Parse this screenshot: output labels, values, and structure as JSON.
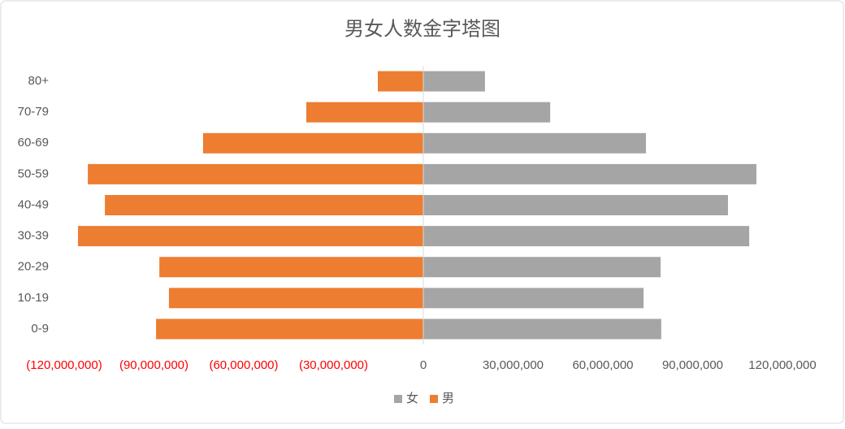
{
  "chart_data": {
    "type": "pyramid",
    "title": "男女人数金字塔图",
    "categories": [
      "0-9",
      "10-19",
      "20-29",
      "30-39",
      "40-49",
      "50-59",
      "60-69",
      "70-79",
      "80+"
    ],
    "series": [
      {
        "name": "女",
        "color": "#a5a5a5",
        "values": [
          79500000,
          73600000,
          79300000,
          108900000,
          101800000,
          111300000,
          74400000,
          42400000,
          20600000
        ]
      },
      {
        "name": "男",
        "color": "#ed7d31",
        "values": [
          -89300000,
          -85000000,
          -88200000,
          -115400000,
          -106400000,
          -112100000,
          -73600000,
          -39100000,
          -15200000
        ]
      }
    ],
    "xlim": [
      -120000000,
      120000000
    ],
    "xticks": [
      {
        "value": -120000000,
        "label": "(120,000,000)"
      },
      {
        "value": -90000000,
        "label": "(90,000,000)"
      },
      {
        "value": -60000000,
        "label": "(60,000,000)"
      },
      {
        "value": -30000000,
        "label": "(30,000,000)"
      },
      0,
      {
        "value": 30000000,
        "label": "30,000,000"
      },
      {
        "value": 60000000,
        "label": "60,000,000"
      },
      {
        "value": 90000000,
        "label": "90,000,000"
      },
      {
        "value": 120000000,
        "label": "120,000,000"
      }
    ],
    "negative_tick_color": "#ff0000",
    "legend": "bottom"
  }
}
